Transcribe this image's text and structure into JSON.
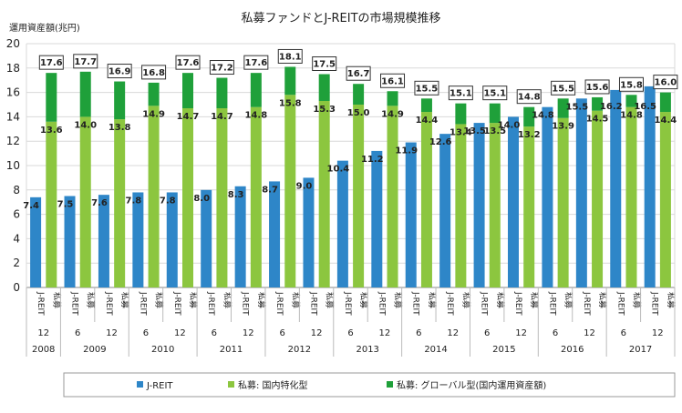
{
  "chart_data": {
    "type": "bar",
    "title": "私募ファンドとJ-REITの市場規模推移",
    "ylabel": "運用資産額(兆円)",
    "ylim": [
      0,
      20
    ],
    "yticks": [
      0,
      2,
      4,
      6,
      8,
      10,
      12,
      14,
      16,
      18,
      20
    ],
    "grid": true,
    "legend_position": "bottom",
    "category_labels": [
      "J-REIT",
      "私募"
    ],
    "periods": [
      {
        "year": "2008",
        "month": "12"
      },
      {
        "year": "2009",
        "month": "6"
      },
      {
        "year": "2009",
        "month": "12"
      },
      {
        "year": "2010",
        "month": "6"
      },
      {
        "year": "2010",
        "month": "12"
      },
      {
        "year": "2011",
        "month": "6"
      },
      {
        "year": "2011",
        "month": "12"
      },
      {
        "year": "2012",
        "month": "6"
      },
      {
        "year": "2012",
        "month": "12"
      },
      {
        "year": "2013",
        "month": "6"
      },
      {
        "year": "2013",
        "month": "12"
      },
      {
        "year": "2014",
        "month": "6"
      },
      {
        "year": "2014",
        "month": "12"
      },
      {
        "year": "2015",
        "month": "6"
      },
      {
        "year": "2015",
        "month": "12"
      },
      {
        "year": "2016",
        "month": "6"
      },
      {
        "year": "2016",
        "month": "12"
      },
      {
        "year": "2017",
        "month": "6"
      },
      {
        "year": "2017",
        "month": "12"
      }
    ],
    "year_groups": [
      "2008",
      "2009",
      "2010",
      "2011",
      "2012",
      "2013",
      "2014",
      "2015",
      "2016",
      "2017"
    ],
    "series": [
      {
        "name": "J-REIT",
        "color": "#2e86c8",
        "values": [
          7.4,
          7.5,
          7.6,
          7.8,
          7.8,
          8.0,
          8.3,
          8.7,
          9.0,
          10.4,
          11.2,
          11.9,
          12.6,
          13.5,
          14.0,
          14.8,
          15.5,
          16.2,
          16.5
        ]
      },
      {
        "name": "私募: 国内特化型",
        "color": "#8cc63f",
        "values": [
          13.6,
          14.0,
          13.8,
          14.9,
          14.7,
          14.7,
          14.8,
          15.8,
          15.3,
          15.0,
          14.9,
          14.4,
          13.4,
          13.5,
          13.2,
          13.9,
          14.5,
          14.8,
          14.4
        ]
      },
      {
        "name": "私募: グローバル型(国内運用資産額)",
        "color": "#1fa03a",
        "values": [
          4.0,
          3.7,
          3.1,
          1.9,
          2.9,
          2.5,
          2.8,
          2.3,
          2.2,
          1.7,
          1.2,
          1.1,
          1.7,
          1.6,
          1.6,
          1.6,
          1.1,
          1.0,
          1.6
        ]
      }
    ],
    "private_totals": [
      17.6,
      17.7,
      16.9,
      16.8,
      17.6,
      17.2,
      17.6,
      18.1,
      17.5,
      16.7,
      16.1,
      15.5,
      15.1,
      15.1,
      14.8,
      15.5,
      15.6,
      15.8,
      16.0
    ]
  }
}
